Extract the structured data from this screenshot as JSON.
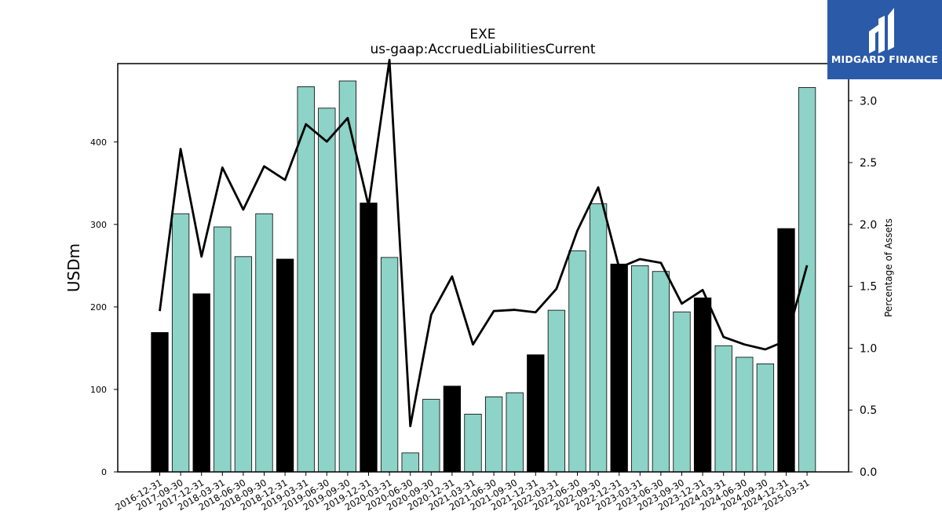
{
  "logo": {
    "text": "MIDGARD FINANCE"
  },
  "chart_data": {
    "type": "bar",
    "title": "EXE",
    "subtitle": "us-gaap:AccruedLiabilitiesCurrent",
    "ylabel": "USDm",
    "y2label": "Percentage of Assets",
    "ylim": [
      0,
      495
    ],
    "y2lim": [
      0,
      3.3
    ],
    "yticks": [
      0,
      100,
      200,
      300,
      400
    ],
    "y2ticks": [
      0.0,
      0.5,
      1.0,
      1.5,
      2.0,
      2.5,
      3.0
    ],
    "y2tick_labels": [
      "0.0",
      "0.5",
      "1.0",
      "1.5",
      "2.0",
      "2.5",
      "3.0"
    ],
    "colors": {
      "annual": "#000000",
      "quarterly": "#8dd3c7",
      "line": "#000000"
    },
    "categories": [
      "2016-12-31",
      "2017-09-30",
      "2017-12-31",
      "2018-03-31",
      "2018-06-30",
      "2018-09-30",
      "2018-12-31",
      "2019-03-31",
      "2019-06-30",
      "2019-09-30",
      "2019-12-31",
      "2020-03-31",
      "2020-06-30",
      "2020-09-30",
      "2020-12-31",
      "2021-03-31",
      "2021-06-30",
      "2021-09-30",
      "2021-12-31",
      "2022-03-31",
      "2022-06-30",
      "2022-09-30",
      "2022-12-31",
      "2023-03-31",
      "2023-06-30",
      "2023-09-30",
      "2023-12-31",
      "2024-03-31",
      "2024-06-30",
      "2024-09-30",
      "2024-12-31",
      "2025-03-31"
    ],
    "series": [
      {
        "values": [
          169,
          313,
          216,
          297,
          261,
          313,
          258,
          467,
          441,
          474,
          326,
          260,
          23,
          88,
          104,
          70,
          91,
          96,
          142,
          196,
          268,
          325,
          252,
          250,
          243,
          194,
          211,
          153,
          139,
          131,
          295,
          466
        ],
        "annual": [
          true,
          false,
          true,
          false,
          false,
          false,
          true,
          false,
          false,
          false,
          true,
          false,
          false,
          false,
          true,
          false,
          false,
          false,
          true,
          false,
          false,
          false,
          true,
          false,
          false,
          false,
          true,
          false,
          false,
          false,
          true,
          false
        ]
      },
      {
        "axis": "right",
        "type": "line",
        "values": [
          1.3,
          2.61,
          1.74,
          2.46,
          2.12,
          2.47,
          2.36,
          2.81,
          2.67,
          2.86,
          2.15,
          3.33,
          0.37,
          1.27,
          1.58,
          1.03,
          1.3,
          1.31,
          1.29,
          1.48,
          1.95,
          2.3,
          1.65,
          1.72,
          1.69,
          1.36,
          1.47,
          1.09,
          1.03,
          0.99,
          1.06,
          1.67
        ]
      }
    ]
  }
}
